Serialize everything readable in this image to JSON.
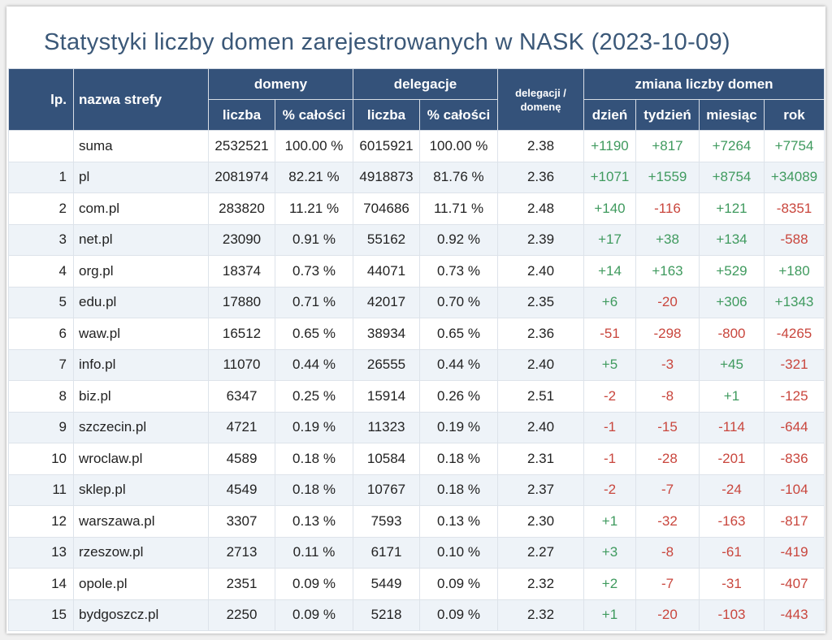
{
  "title": "Statystyki liczby domen zarejestrowanych w NASK (2023-10-09)",
  "header": {
    "top": [
      "lp.",
      "nazwa strefy",
      "domeny",
      "delegacje",
      "delegacji / domenę",
      "zmiana liczby domen"
    ],
    "sub": [
      "liczba",
      "% całości",
      "liczba",
      "% całości",
      "dzień",
      "tydzień",
      "miesiąc",
      "rok"
    ]
  },
  "table": {
    "total": {
      "name": "suma",
      "cells": [
        "2532521",
        "100.00 %",
        "6015921",
        "100.00 %",
        "2.38",
        "+1190",
        "+817",
        "+7264",
        "+7754"
      ]
    },
    "rows": [
      [
        "1",
        "pl",
        "2081974",
        "82.21 %",
        "4918873",
        "81.76 %",
        "2.36",
        "+1071",
        "+1559",
        "+8754",
        "+34089"
      ],
      [
        "2",
        "com.pl",
        "283820",
        "11.21 %",
        "704686",
        "11.71 %",
        "2.48",
        "+140",
        "-116",
        "+121",
        "-8351"
      ],
      [
        "3",
        "net.pl",
        "23090",
        "0.91 %",
        "55162",
        "0.92 %",
        "2.39",
        "+17",
        "+38",
        "+134",
        "-588"
      ],
      [
        "4",
        "org.pl",
        "18374",
        "0.73 %",
        "44071",
        "0.73 %",
        "2.40",
        "+14",
        "+163",
        "+529",
        "+180"
      ],
      [
        "5",
        "edu.pl",
        "17880",
        "0.71 %",
        "42017",
        "0.70 %",
        "2.35",
        "+6",
        "-20",
        "+306",
        "+1343"
      ],
      [
        "6",
        "waw.pl",
        "16512",
        "0.65 %",
        "38934",
        "0.65 %",
        "2.36",
        "-51",
        "-298",
        "-800",
        "-4265"
      ],
      [
        "7",
        "info.pl",
        "11070",
        "0.44 %",
        "26555",
        "0.44 %",
        "2.40",
        "+5",
        "-3",
        "+45",
        "-321"
      ],
      [
        "8",
        "biz.pl",
        "6347",
        "0.25 %",
        "15914",
        "0.26 %",
        "2.51",
        "-2",
        "-8",
        "+1",
        "-125"
      ],
      [
        "9",
        "szczecin.pl",
        "4721",
        "0.19 %",
        "11323",
        "0.19 %",
        "2.40",
        "-1",
        "-15",
        "-114",
        "-644"
      ],
      [
        "10",
        "wroclaw.pl",
        "4589",
        "0.18 %",
        "10584",
        "0.18 %",
        "2.31",
        "-1",
        "-28",
        "-201",
        "-836"
      ],
      [
        "11",
        "sklep.pl",
        "4549",
        "0.18 %",
        "10767",
        "0.18 %",
        "2.37",
        "-2",
        "-7",
        "-24",
        "-104"
      ],
      [
        "12",
        "warszawa.pl",
        "3307",
        "0.13 %",
        "7593",
        "0.13 %",
        "2.30",
        "+1",
        "-32",
        "-163",
        "-817"
      ],
      [
        "13",
        "rzeszow.pl",
        "2713",
        "0.11 %",
        "6171",
        "0.10 %",
        "2.27",
        "+3",
        "-8",
        "-61",
        "-419"
      ],
      [
        "14",
        "opole.pl",
        "2351",
        "0.09 %",
        "5449",
        "0.09 %",
        "2.32",
        "+2",
        "-7",
        "-31",
        "-407"
      ],
      [
        "15",
        "bydgoszcz.pl",
        "2250",
        "0.09 %",
        "5218",
        "0.09 %",
        "2.32",
        "+1",
        "-20",
        "-103",
        "-443"
      ]
    ]
  }
}
